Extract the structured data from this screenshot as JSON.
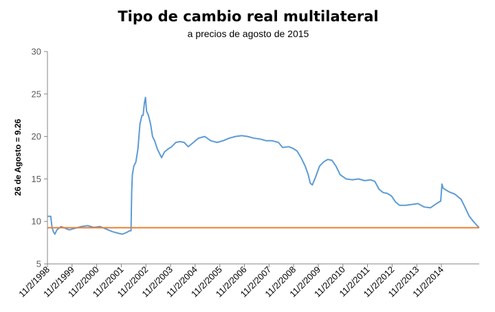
{
  "chart_data": {
    "type": "line",
    "title": "Tipo de cambio real multilateral",
    "subtitle": "a precios de agosto de 2015",
    "ylabel": "26 de Agosto  = 9.26",
    "xlabel": "",
    "ylim": [
      5,
      30
    ],
    "yticks": [
      "5",
      "10",
      "15",
      "20",
      "25",
      "30"
    ],
    "xlim": [
      "1998-02-11",
      "2015-08-26"
    ],
    "x_tick_labels": [
      "11/2/1998",
      "11/2/1999",
      "11/2/2000",
      "11/2/2001",
      "11/2/2002",
      "11/2/2003",
      "11/2/2004",
      "11/2/2005",
      "11/2/2006",
      "11/2/2007",
      "11/2/2008",
      "11/2/2009",
      "11/2/2010",
      "11/2/2011",
      "11/2/2012",
      "11/2/2013",
      "11/2/2014"
    ],
    "grid": false,
    "legend": "none",
    "series": [
      {
        "color": "#5B9BD5",
        "points": [
          [
            "1998-02-11",
            10.6
          ],
          [
            "1998-04-01",
            10.6
          ],
          [
            "1998-04-20",
            9.3
          ],
          [
            "1998-05-10",
            8.8
          ],
          [
            "1998-06-01",
            8.5
          ],
          [
            "1998-07-01",
            9.0
          ],
          [
            "1998-09-01",
            9.4
          ],
          [
            "1998-11-01",
            9.2
          ],
          [
            "1999-01-01",
            9.0
          ],
          [
            "1999-04-01",
            9.2
          ],
          [
            "1999-07-01",
            9.4
          ],
          [
            "1999-10-01",
            9.5
          ],
          [
            "2000-01-01",
            9.3
          ],
          [
            "2000-04-01",
            9.4
          ],
          [
            "2000-07-01",
            9.1
          ],
          [
            "2000-10-01",
            8.8
          ],
          [
            "2001-01-01",
            8.6
          ],
          [
            "2001-03-01",
            8.5
          ],
          [
            "2001-05-01",
            8.7
          ],
          [
            "2001-06-15",
            8.9
          ],
          [
            "2001-07-05",
            8.9
          ],
          [
            "2001-07-15",
            13.5
          ],
          [
            "2001-07-25",
            15.5
          ],
          [
            "2001-08-15",
            16.5
          ],
          [
            "2001-09-15",
            17.0
          ],
          [
            "2001-10-15",
            18.5
          ],
          [
            "2001-11-15",
            21.5
          ],
          [
            "2001-12-15",
            22.5
          ],
          [
            "2002-01-01",
            22.5
          ],
          [
            "2002-01-20",
            24.0
          ],
          [
            "2002-02-05",
            24.6
          ],
          [
            "2002-02-20",
            23.0
          ],
          [
            "2002-03-20",
            22.5
          ],
          [
            "2002-04-20",
            21.5
          ],
          [
            "2002-05-20",
            20.0
          ],
          [
            "2002-06-20",
            19.5
          ],
          [
            "2002-08-01",
            18.5
          ],
          [
            "2002-09-01",
            18.0
          ],
          [
            "2002-10-01",
            17.5
          ],
          [
            "2002-11-15",
            18.2
          ],
          [
            "2003-01-01",
            18.5
          ],
          [
            "2003-03-01",
            18.8
          ],
          [
            "2003-05-01",
            19.3
          ],
          [
            "2003-07-01",
            19.4
          ],
          [
            "2003-09-01",
            19.3
          ],
          [
            "2003-11-01",
            18.8
          ],
          [
            "2004-01-01",
            19.2
          ],
          [
            "2004-04-01",
            19.8
          ],
          [
            "2004-07-01",
            20.0
          ],
          [
            "2004-10-01",
            19.5
          ],
          [
            "2005-01-01",
            19.3
          ],
          [
            "2005-04-01",
            19.5
          ],
          [
            "2005-07-01",
            19.8
          ],
          [
            "2005-10-01",
            20.0
          ],
          [
            "2006-01-01",
            20.1
          ],
          [
            "2006-04-01",
            20.0
          ],
          [
            "2006-07-01",
            19.8
          ],
          [
            "2006-10-01",
            19.7
          ],
          [
            "2007-01-01",
            19.5
          ],
          [
            "2007-04-01",
            19.5
          ],
          [
            "2007-07-01",
            19.3
          ],
          [
            "2007-09-01",
            18.7
          ],
          [
            "2007-12-01",
            18.8
          ],
          [
            "2008-02-01",
            18.6
          ],
          [
            "2008-04-01",
            18.3
          ],
          [
            "2008-06-01",
            17.5
          ],
          [
            "2008-08-01",
            16.5
          ],
          [
            "2008-09-15",
            15.5
          ],
          [
            "2008-10-15",
            14.5
          ],
          [
            "2008-11-15",
            14.3
          ],
          [
            "2009-01-01",
            15.2
          ],
          [
            "2009-03-01",
            16.5
          ],
          [
            "2009-05-01",
            17.0
          ],
          [
            "2009-07-01",
            17.3
          ],
          [
            "2009-09-01",
            17.2
          ],
          [
            "2009-11-01",
            16.5
          ],
          [
            "2010-01-01",
            15.5
          ],
          [
            "2010-04-01",
            15.0
          ],
          [
            "2010-07-01",
            14.9
          ],
          [
            "2010-10-01",
            15.0
          ],
          [
            "2011-01-01",
            14.8
          ],
          [
            "2011-04-01",
            14.9
          ],
          [
            "2011-06-01",
            14.7
          ],
          [
            "2011-08-01",
            13.8
          ],
          [
            "2011-10-01",
            13.4
          ],
          [
            "2011-12-01",
            13.3
          ],
          [
            "2012-02-01",
            13.0
          ],
          [
            "2012-04-01",
            12.3
          ],
          [
            "2012-06-01",
            11.9
          ],
          [
            "2012-09-01",
            11.9
          ],
          [
            "2012-12-01",
            12.0
          ],
          [
            "2013-03-01",
            12.1
          ],
          [
            "2013-06-01",
            11.7
          ],
          [
            "2013-09-01",
            11.6
          ],
          [
            "2013-12-01",
            12.1
          ],
          [
            "2014-02-01",
            12.4
          ],
          [
            "2014-02-20",
            14.4
          ],
          [
            "2014-03-10",
            13.9
          ],
          [
            "2014-06-01",
            13.5
          ],
          [
            "2014-09-01",
            13.2
          ],
          [
            "2014-12-01",
            12.6
          ],
          [
            "2015-02-01",
            11.6
          ],
          [
            "2015-04-01",
            10.6
          ],
          [
            "2015-06-01",
            10.0
          ],
          [
            "2015-07-15",
            9.6
          ],
          [
            "2015-08-26",
            9.26
          ]
        ]
      },
      {
        "color": "#ED7D31",
        "points": [
          [
            "1998-02-11",
            9.26
          ],
          [
            "2015-08-26",
            9.26
          ]
        ]
      }
    ]
  }
}
